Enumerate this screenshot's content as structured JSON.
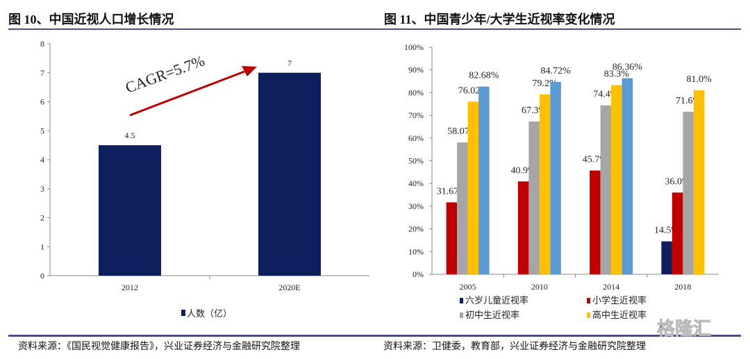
{
  "chart_data": [
    {
      "type": "bar",
      "title": "图 10、中国近视人口增长情况",
      "categories": [
        "2012",
        "2020E"
      ],
      "series": [
        {
          "name": "人数（亿）",
          "values": [
            4.5,
            7
          ],
          "color": "#0d1f5c"
        }
      ],
      "ylim": [
        0,
        8
      ],
      "yticks": [
        0,
        1,
        2,
        3,
        4,
        5,
        6,
        7,
        8
      ],
      "annotation": "CAGR=5.7%",
      "annotation_color": "#c00000",
      "legend": "bottom",
      "source": "资料来源：《国民视觉健康报告》，兴业证券经济与金融研究院整理"
    },
    {
      "type": "bar",
      "title": "图 11、中国青少年/大学生近视率变化情况",
      "categories": [
        "2005",
        "2010",
        "2014",
        "2018"
      ],
      "series": [
        {
          "name": "六岁儿童近视率",
          "values": [
            null,
            null,
            null,
            14.5
          ],
          "labels": [
            "",
            "",
            "",
            "14.5%"
          ],
          "color": "#0d1f5c"
        },
        {
          "name": "小学生近视率",
          "values": [
            31.67,
            40.9,
            45.7,
            36.0
          ],
          "labels": [
            "31.67%",
            "40.9%",
            "45.7%",
            "36.0%"
          ],
          "color": "#c00000"
        },
        {
          "name": "初中生近视率",
          "values": [
            58.07,
            67.3,
            74.4,
            71.6
          ],
          "labels": [
            "58.07%",
            "67.3%",
            "74.4%",
            "71.6%"
          ],
          "color": "#a6a6a6"
        },
        {
          "name": "高中生近视率",
          "values": [
            76.02,
            79.2,
            83.3,
            81.0
          ],
          "labels": [
            "76.02%",
            "79.2%",
            "83.3%",
            "81.0%"
          ],
          "color": "#ffc000"
        },
        {
          "values": [
            82.68,
            84.72,
            86.36,
            null
          ],
          "labels": [
            "82.68%",
            "84.72%",
            "86.36%",
            ""
          ],
          "color": "#5b9bd5"
        }
      ],
      "ylim": [
        0,
        100
      ],
      "yticks": [
        "0%",
        "10%",
        "20%",
        "30%",
        "40%",
        "50%",
        "60%",
        "70%",
        "80%",
        "90%",
        "100%"
      ],
      "legend": "bottom",
      "source": "资料来源：卫健委，教育部，兴业证券经济与金融研究院整理"
    }
  ],
  "watermark": "格隆汇"
}
